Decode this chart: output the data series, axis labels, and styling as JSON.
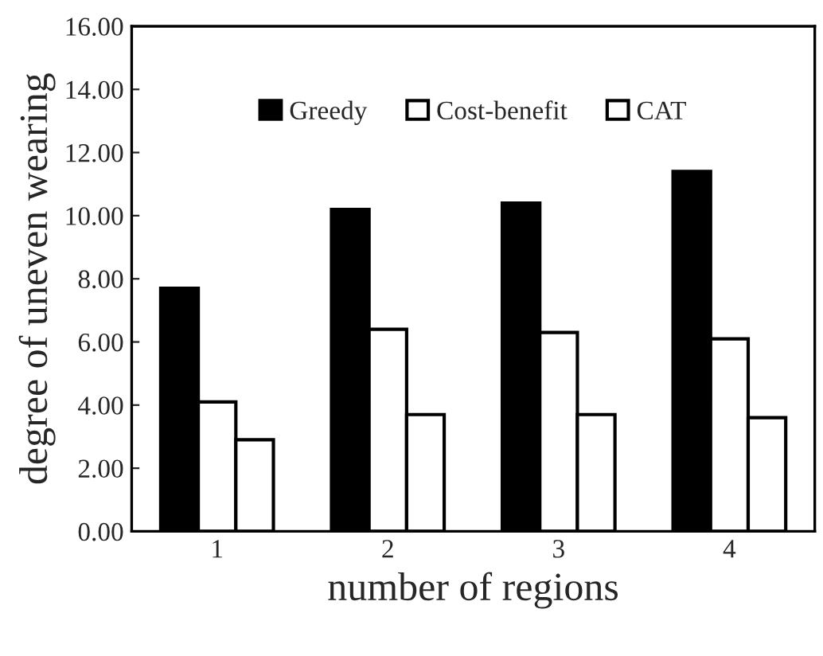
{
  "chart_data": {
    "type": "bar",
    "xlabel": "number of regions",
    "ylabel": "degree of uneven wearing",
    "categories": [
      "1",
      "2",
      "3",
      "4"
    ],
    "series": [
      {
        "name": "Greedy",
        "color": "#000000",
        "values": [
          7.7,
          10.2,
          10.4,
          11.4
        ]
      },
      {
        "name": "Cost-benefit",
        "color": "#ffffff",
        "values": [
          4.1,
          6.4,
          6.3,
          6.1
        ]
      },
      {
        "name": "CAT",
        "color": "#ffffff",
        "values": [
          2.9,
          3.7,
          3.7,
          3.6
        ]
      }
    ],
    "ylim": [
      0,
      16
    ],
    "yticks": [
      {
        "value": 0,
        "label": "0.00"
      },
      {
        "value": 2,
        "label": "2.00"
      },
      {
        "value": 4,
        "label": "4.00"
      },
      {
        "value": 6,
        "label": "6.00"
      },
      {
        "value": 8,
        "label": "8.00"
      },
      {
        "value": 10,
        "label": "10.00"
      },
      {
        "value": 12,
        "label": "12.00"
      },
      {
        "value": 14,
        "label": "14.00"
      },
      {
        "value": 16,
        "label": "16.00"
      }
    ],
    "grid": false,
    "legend": "top"
  }
}
